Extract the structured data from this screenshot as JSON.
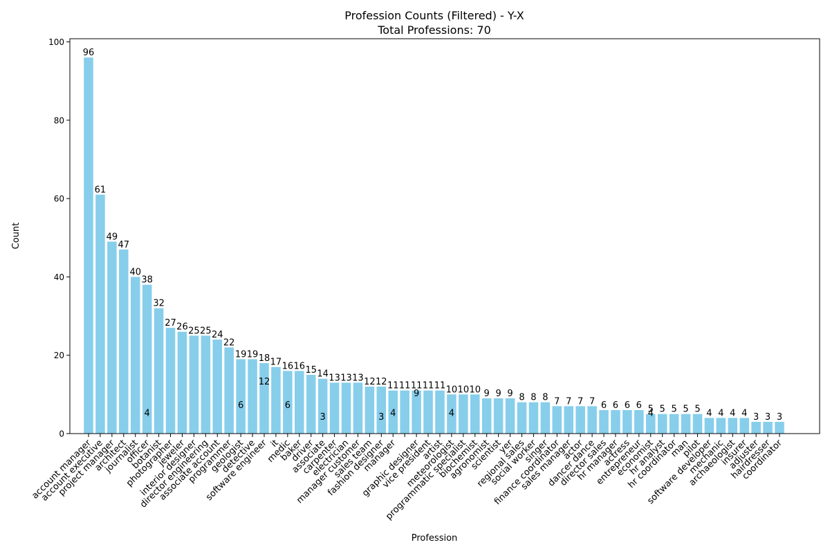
{
  "chart_data": {
    "type": "bar",
    "title": "Profession Counts (Filtered) - Y-X",
    "subtitle": "Total Professions: 70",
    "x_label": "Profession",
    "y_label": "Count",
    "color": "#87ceeb",
    "categories": [
      "account manager",
      "account executive",
      "project manager",
      "architect",
      "journalist",
      "officer",
      "botanist",
      "photographer",
      "jeweler",
      "interior designer",
      "director engineering",
      "associate account",
      "programmer",
      "geologist",
      "detective",
      "software engineer",
      "it",
      "medic",
      "baker",
      "driver",
      "associate",
      "carpenter",
      "electrician",
      "manager customer",
      "sales team",
      "fashion designer",
      "manager",
      null,
      "graphic designer",
      "vice president",
      "artist",
      "meteorologist",
      "programmatic specialist",
      "biochemist",
      "agronomist",
      "scientist",
      "yer",
      "regional sales",
      "social worker",
      "singer",
      "finance coordinator",
      "sales manager",
      "actor",
      "dancer dance",
      "director sales",
      "hr manager",
      "actress",
      "entrepreneur",
      "economist",
      "hr analyst",
      "hr coordinator",
      "man",
      "pilot",
      "software developer",
      "mechanic",
      "archaeologist",
      "insurer",
      "adjuster",
      "hairdresser",
      "coordinator"
    ],
    "values": [
      96,
      61,
      49,
      47,
      40,
      38,
      32,
      27,
      26,
      25,
      25,
      24,
      22,
      19,
      19,
      18,
      17,
      16,
      16,
      15,
      14,
      13,
      13,
      13,
      12,
      12,
      11,
      11,
      11,
      11,
      11,
      10,
      10,
      10,
      9,
      9,
      9,
      8,
      8,
      8,
      7,
      7,
      7,
      7,
      6,
      6,
      6,
      6,
      5,
      5,
      5,
      5,
      5,
      4,
      4,
      4,
      4,
      3,
      3,
      3
    ],
    "annotations": [
      {
        "index": 5,
        "value": 4
      },
      {
        "index": 13,
        "value": 6
      },
      {
        "index": 15,
        "value": 12
      },
      {
        "index": 17,
        "value": 6
      },
      {
        "index": 20,
        "value": 3
      },
      {
        "index": 25,
        "value": 3
      },
      {
        "index": 26,
        "value": 4
      },
      {
        "index": 28,
        "value": 9
      },
      {
        "index": 31,
        "value": 4
      },
      {
        "index": 48,
        "value": 4
      }
    ],
    "ylim": [
      0,
      100.8
    ],
    "yticks": [
      0,
      20,
      40,
      60,
      80,
      100
    ]
  }
}
